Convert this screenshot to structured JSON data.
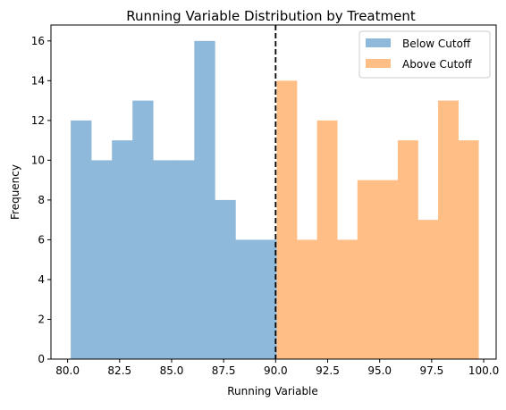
{
  "chart_data": {
    "type": "bar",
    "title": "Running Variable Distribution by Treatment",
    "xlabel": "Running Variable",
    "ylabel": "Frequency",
    "xlim": [
      79.2,
      100.6
    ],
    "ylim": [
      0,
      16.8
    ],
    "xticks": [
      80.0,
      82.5,
      85.0,
      87.5,
      90.0,
      92.5,
      95.0,
      97.5,
      100.0
    ],
    "xtick_labels": [
      "80.0",
      "82.5",
      "85.0",
      "87.5",
      "90.0",
      "92.5",
      "95.0",
      "97.5",
      "100.0"
    ],
    "yticks": [
      0,
      2,
      4,
      6,
      8,
      10,
      12,
      14,
      16
    ],
    "ytick_labels": [
      "0",
      "2",
      "4",
      "6",
      "8",
      "10",
      "12",
      "14",
      "16"
    ],
    "legend_position": "top-right",
    "cutoff": 90.0,
    "series": [
      {
        "name": "Below Cutoff",
        "color": "#8fb9da",
        "bin_edges": [
          80.15,
          81.14,
          82.13,
          83.12,
          84.11,
          85.1,
          86.09,
          87.08,
          88.07,
          89.06,
          90.05
        ],
        "values": [
          12,
          10,
          11,
          13,
          10,
          10,
          16,
          8,
          6,
          6
        ]
      },
      {
        "name": "Above Cutoff",
        "color": "#ffbe86",
        "bin_edges": [
          90.05,
          91.02,
          91.99,
          92.96,
          93.93,
          94.9,
          95.87,
          96.84,
          97.81,
          98.78,
          99.75
        ],
        "values": [
          14,
          6,
          12,
          6,
          9,
          9,
          11,
          7,
          13,
          11
        ]
      }
    ]
  }
}
